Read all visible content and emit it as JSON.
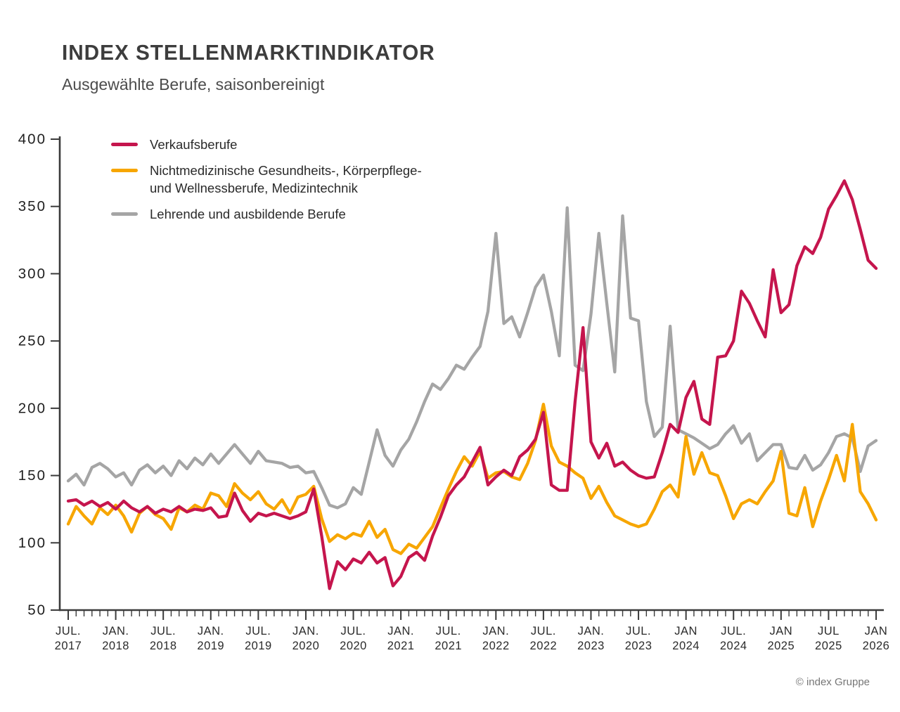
{
  "header": {
    "title": "INDEX STELLENMARKTINDIKATOR",
    "subtitle": "Ausgewählte Berufe, saisonbereinigt"
  },
  "footer": {
    "copyright": "© index Gruppe"
  },
  "colors": {
    "red": "#C5154D",
    "orange": "#F7A600",
    "gray": "#A5A5A5",
    "axis": "#3b3b3b",
    "title_text": "#3d3d3d",
    "subtitle_text": "#4c4c4c",
    "tick_text": "#1f1f1f",
    "footer_text": "#767676"
  },
  "chart_data": {
    "type": "line",
    "title": "INDEX STELLENMARKTINDIKATOR",
    "subtitle": "Ausgewählte Berufe, saisonbereinigt",
    "x_start": "2017-07",
    "x_end": "2026-01",
    "frequency": "monthly",
    "n_points": 103,
    "ylim": [
      50,
      400
    ],
    "yticks": [
      50,
      100,
      150,
      200,
      250,
      300,
      350,
      400
    ],
    "grid": false,
    "legend_position": "top-left-inside",
    "x_tick_labels": [
      {
        "index": 0,
        "top": "JUL.",
        "bottom": "2017"
      },
      {
        "index": 6,
        "top": "JAN.",
        "bottom": "2018"
      },
      {
        "index": 12,
        "top": "JUL.",
        "bottom": "2018"
      },
      {
        "index": 18,
        "top": "JAN.",
        "bottom": "2019"
      },
      {
        "index": 24,
        "top": "JUL.",
        "bottom": "2019"
      },
      {
        "index": 30,
        "top": "JAN.",
        "bottom": "2020"
      },
      {
        "index": 36,
        "top": "JUL.",
        "bottom": "2020"
      },
      {
        "index": 42,
        "top": "JAN.",
        "bottom": "2021"
      },
      {
        "index": 48,
        "top": "JUL.",
        "bottom": "2021"
      },
      {
        "index": 54,
        "top": "JAN.",
        "bottom": "2022"
      },
      {
        "index": 60,
        "top": "JUL.",
        "bottom": "2022"
      },
      {
        "index": 66,
        "top": "JAN.",
        "bottom": "2023"
      },
      {
        "index": 72,
        "top": "JUL.",
        "bottom": "2023"
      },
      {
        "index": 78,
        "top": "JAN",
        "bottom": "2024"
      },
      {
        "index": 84,
        "top": "JUL.",
        "bottom": "2024"
      },
      {
        "index": 90,
        "top": "JAN",
        "bottom": "2025"
      },
      {
        "index": 96,
        "top": "JUL",
        "bottom": "2025"
      },
      {
        "index": 102,
        "top": "JAN",
        "bottom": "2026"
      }
    ],
    "series": [
      {
        "name": "Verkaufsberufe",
        "label_lines": [
          "Verkaufsberufe"
        ],
        "color": "#C5154D",
        "values": [
          131,
          132,
          128,
          131,
          127,
          130,
          125,
          131,
          126,
          123,
          127,
          122,
          125,
          123,
          127,
          123,
          125,
          124,
          126,
          119,
          120,
          137,
          124,
          116,
          122,
          120,
          122,
          120,
          118,
          120,
          123,
          140,
          105,
          66,
          86,
          80,
          88,
          85,
          93,
          85,
          89,
          68,
          75,
          89,
          93,
          87,
          105,
          119,
          135,
          143,
          149,
          160,
          171,
          143,
          149,
          154,
          150,
          164,
          169,
          177,
          197,
          143,
          139,
          139,
          205,
          260,
          175,
          163,
          174,
          157,
          160,
          154,
          150,
          148,
          149,
          167,
          188,
          182,
          208,
          220,
          192,
          188,
          238,
          239,
          250,
          287,
          278,
          265,
          253,
          303,
          271,
          277,
          306,
          320,
          315,
          327,
          348,
          358,
          369,
          355,
          333,
          310,
          304
        ]
      },
      {
        "name": "Nichtmedizinische Gesundheits-, Körperpflege- und Wellnessberufe, Medizintechnik",
        "label_lines": [
          "Nichtmedizinische Gesundheits-, Körperpflege-",
          "und Wellnessberufe, Medizintechnik"
        ],
        "color": "#F7A600",
        "values": [
          114,
          127,
          120,
          114,
          126,
          121,
          128,
          120,
          108,
          122,
          127,
          121,
          118,
          110,
          126,
          123,
          128,
          125,
          137,
          135,
          127,
          144,
          137,
          132,
          138,
          129,
          125,
          132,
          122,
          134,
          136,
          142,
          118,
          101,
          106,
          103,
          107,
          105,
          116,
          104,
          110,
          95,
          92,
          99,
          96,
          104,
          112,
          126,
          140,
          153,
          164,
          157,
          168,
          148,
          152,
          153,
          149,
          147,
          159,
          176,
          203,
          172,
          160,
          157,
          152,
          148,
          133,
          142,
          130,
          120,
          117,
          114,
          112,
          114,
          125,
          138,
          143,
          134,
          179,
          151,
          167,
          152,
          150,
          135,
          118,
          129,
          132,
          129,
          138,
          146,
          168,
          122,
          120,
          141,
          112,
          131,
          147,
          165,
          146,
          188,
          138,
          129,
          117
        ]
      },
      {
        "name": "Lehrende und ausbildende Berufe",
        "label_lines": [
          "Lehrende und ausbildende Berufe"
        ],
        "color": "#A5A5A5",
        "values": [
          146,
          151,
          143,
          156,
          159,
          155,
          149,
          152,
          143,
          154,
          158,
          152,
          157,
          150,
          161,
          155,
          163,
          158,
          166,
          159,
          166,
          173,
          166,
          159,
          168,
          161,
          160,
          159,
          156,
          157,
          152,
          153,
          141,
          128,
          126,
          129,
          141,
          136,
          160,
          184,
          165,
          157,
          169,
          177,
          190,
          205,
          218,
          214,
          222,
          232,
          229,
          238,
          246,
          272,
          330,
          263,
          268,
          253,
          271,
          290,
          299,
          272,
          239,
          349,
          232,
          228,
          270,
          330,
          278,
          227,
          343,
          267,
          265,
          205,
          179,
          186,
          261,
          184,
          181,
          178,
          174,
          170,
          173,
          181,
          187,
          174,
          181,
          161,
          167,
          173,
          173,
          156,
          155,
          165,
          154,
          158,
          167,
          179,
          181,
          178,
          153,
          172,
          176
        ]
      }
    ]
  }
}
